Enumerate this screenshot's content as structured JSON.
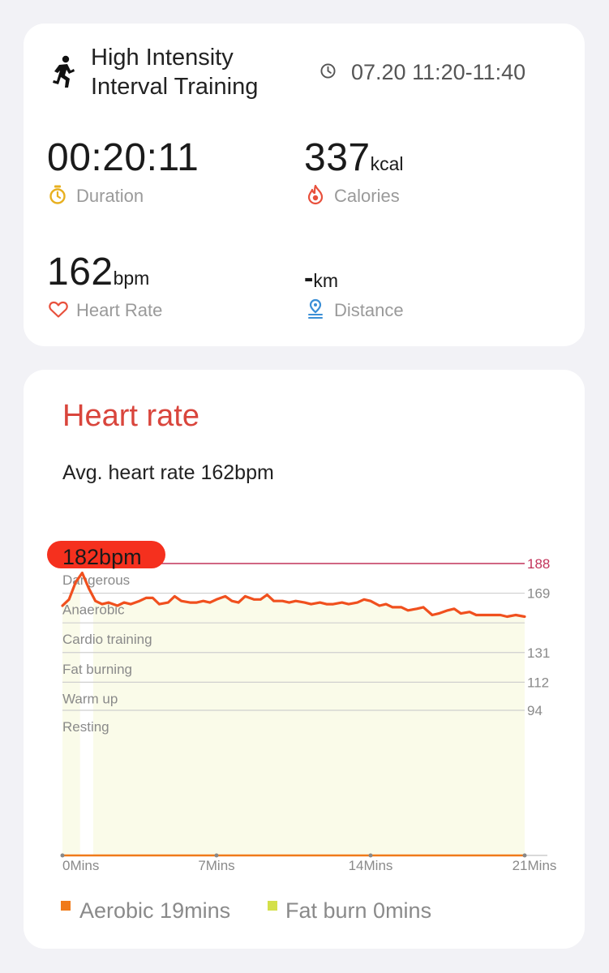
{
  "workout": {
    "title_line1": "High Intensity",
    "title_line2": "Interval Training",
    "time": "07.20 11:20-11:40"
  },
  "stats": {
    "duration": {
      "value": "00:20:11",
      "label": "Duration"
    },
    "calories": {
      "value": "337",
      "unit": "kcal",
      "label": "Calories"
    },
    "heart_rate": {
      "value": "162",
      "unit": "bpm",
      "label": "Heart Rate"
    },
    "distance": {
      "value": "-",
      "unit": "km",
      "label": "Distance"
    }
  },
  "heart_section": {
    "title": "Heart rate",
    "avg_text": "Avg. heart rate 162bpm",
    "peak_label": "182bpm"
  },
  "legend": [
    {
      "label": "Aerobic 19mins",
      "color": "#f07a1a"
    },
    {
      "label": "Fat burn 0mins",
      "color": "#d4e04a"
    }
  ],
  "colors": {
    "accent_red": "#d9453c",
    "line": "#f0501e",
    "fill": "#fafbe9",
    "max_line": "#c2335a",
    "grid": "#cfcfcf"
  },
  "chart_data": {
    "type": "area",
    "xlabel": "",
    "ylabel": "",
    "x_ticks": [
      "0Mins",
      "7Mins",
      "14Mins",
      "21Mins"
    ],
    "xlim": [
      0,
      21
    ],
    "zones": [
      {
        "name": "Dangerous",
        "threshold": 188
      },
      {
        "name": "Anaerobic",
        "threshold": 169
      },
      {
        "name": "Cardio training",
        "threshold": 150
      },
      {
        "name": "Fat burning",
        "threshold": 131
      },
      {
        "name": "Warm up",
        "threshold": 112
      },
      {
        "name": "Resting",
        "threshold": 94
      }
    ],
    "y_ticks": [
      188,
      169,
      131,
      112,
      94
    ],
    "max_hr": 188,
    "peak": {
      "x": 1.2,
      "y": 182,
      "label": "182bpm"
    },
    "series": [
      {
        "x": [
          0,
          0.3,
          0.6,
          0.9,
          1.2,
          1.5,
          1.8,
          2.1,
          2.5,
          2.8,
          3.1,
          3.5,
          3.8,
          4.1,
          4.4,
          4.8,
          5.1,
          5.4,
          5.8,
          6.1,
          6.4,
          6.7,
          7.0,
          7.4,
          7.7,
          8.0,
          8.3,
          8.7,
          9.0,
          9.3,
          9.6,
          10.0,
          10.3,
          10.6,
          11.0,
          11.3,
          11.7,
          12.0,
          12.3,
          12.7,
          13.0,
          13.4,
          13.7,
          14.0,
          14.4,
          14.7,
          15.0,
          15.4,
          15.7,
          16.1,
          16.4,
          16.8,
          17.1,
          17.5,
          17.8,
          18.1,
          18.5,
          18.8,
          19.2,
          19.5,
          19.9,
          20.2,
          20.6,
          21.0
        ],
        "y": [
          161,
          165,
          176,
          182,
          172,
          164,
          162,
          163,
          161,
          163,
          162,
          164,
          166,
          166,
          162,
          163,
          167,
          164,
          163,
          163,
          164,
          163,
          165,
          167,
          164,
          163,
          167,
          165,
          165,
          168,
          164,
          164,
          163,
          164,
          163,
          162,
          163,
          162,
          162,
          163,
          162,
          163,
          165,
          164,
          161,
          162,
          160,
          160,
          158,
          159,
          160,
          155,
          156,
          158,
          159,
          156,
          157,
          155,
          155,
          155,
          155,
          154,
          155,
          154
        ]
      }
    ]
  }
}
